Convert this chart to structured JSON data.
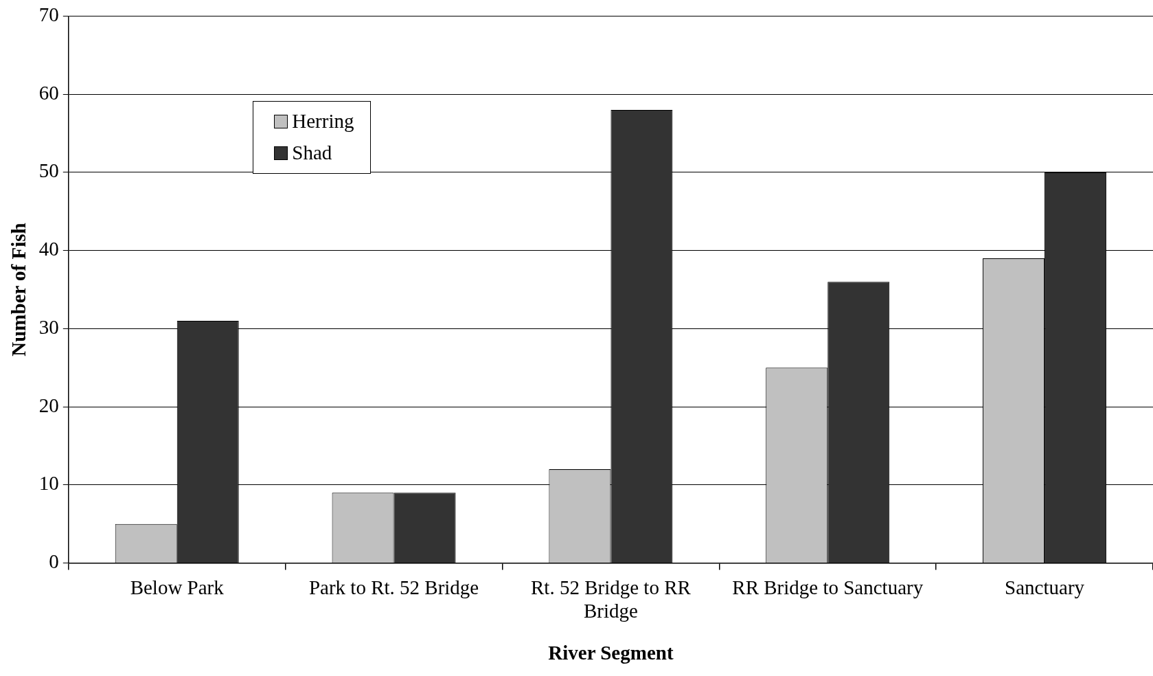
{
  "chart_data": {
    "type": "bar",
    "xlabel": "River Segment",
    "ylabel": "Number of Fish",
    "categories": [
      "Below Park",
      "Park to Rt. 52 Bridge",
      "Rt. 52 Bridge to RR Bridge",
      "RR Bridge to Sanctuary",
      "Sanctuary"
    ],
    "series": [
      {
        "name": "Herring",
        "color": "#c0c0c0",
        "values": [
          5,
          9,
          12,
          25,
          39
        ]
      },
      {
        "name": "Shad",
        "color": "#333333",
        "values": [
          31,
          9,
          58,
          36,
          50
        ]
      }
    ],
    "ylim": [
      0,
      70
    ],
    "yticks": [
      0,
      10,
      20,
      30,
      40,
      50,
      60,
      70
    ],
    "grid": "y",
    "legend": "top left"
  }
}
